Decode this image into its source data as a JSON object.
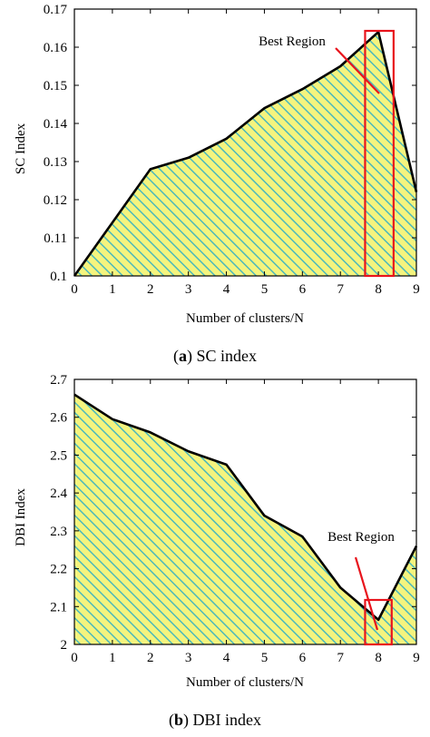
{
  "chart_data": [
    {
      "type": "area",
      "caption_prefix": "(",
      "caption_letter": "a",
      "caption_suffix": ") SC index",
      "xlabel": "Number of clusters/N",
      "ylabel": "SC Index",
      "x": [
        0,
        1,
        2,
        3,
        4,
        5,
        6,
        7,
        8,
        9
      ],
      "y": [
        0.1,
        0.114,
        0.128,
        0.131,
        0.136,
        0.144,
        0.149,
        0.155,
        0.164,
        0.122
      ],
      "xlim": [
        0,
        9
      ],
      "ylim": [
        0.1,
        0.17
      ],
      "xticks": [
        "0",
        "1",
        "2",
        "3",
        "4",
        "5",
        "6",
        "7",
        "8",
        "9"
      ],
      "yticks": [
        "0.1",
        "0.11",
        "0.12",
        "0.13",
        "0.14",
        "0.15",
        "0.16",
        "0.17"
      ],
      "annotation": {
        "text": "Best Region",
        "x_range": [
          7.65,
          8.4
        ]
      }
    },
    {
      "type": "area",
      "caption_prefix": "(",
      "caption_letter": "b",
      "caption_suffix": ") DBI index",
      "xlabel": "Number of clusters/N",
      "ylabel": "DBI Index",
      "x": [
        0,
        1,
        2,
        3,
        4,
        5,
        6,
        7,
        8,
        9
      ],
      "y": [
        2.66,
        2.595,
        2.56,
        2.51,
        2.475,
        2.34,
        2.285,
        2.15,
        2.065,
        2.26
      ],
      "xlim": [
        0,
        9
      ],
      "ylim": [
        2.0,
        2.7
      ],
      "xticks": [
        "0",
        "1",
        "2",
        "3",
        "4",
        "5",
        "6",
        "7",
        "8",
        "9"
      ],
      "yticks": [
        "2",
        "2.1",
        "2.2",
        "2.3",
        "2.4",
        "2.5",
        "2.6",
        "2.7"
      ],
      "annotation": {
        "text": "Best Region",
        "x_range": [
          7.65,
          8.35
        ]
      }
    }
  ],
  "colors": {
    "fill": "#f4f47e",
    "hatch": "#4cb9bc",
    "line": "#000000",
    "highlight": "#e8141c"
  }
}
